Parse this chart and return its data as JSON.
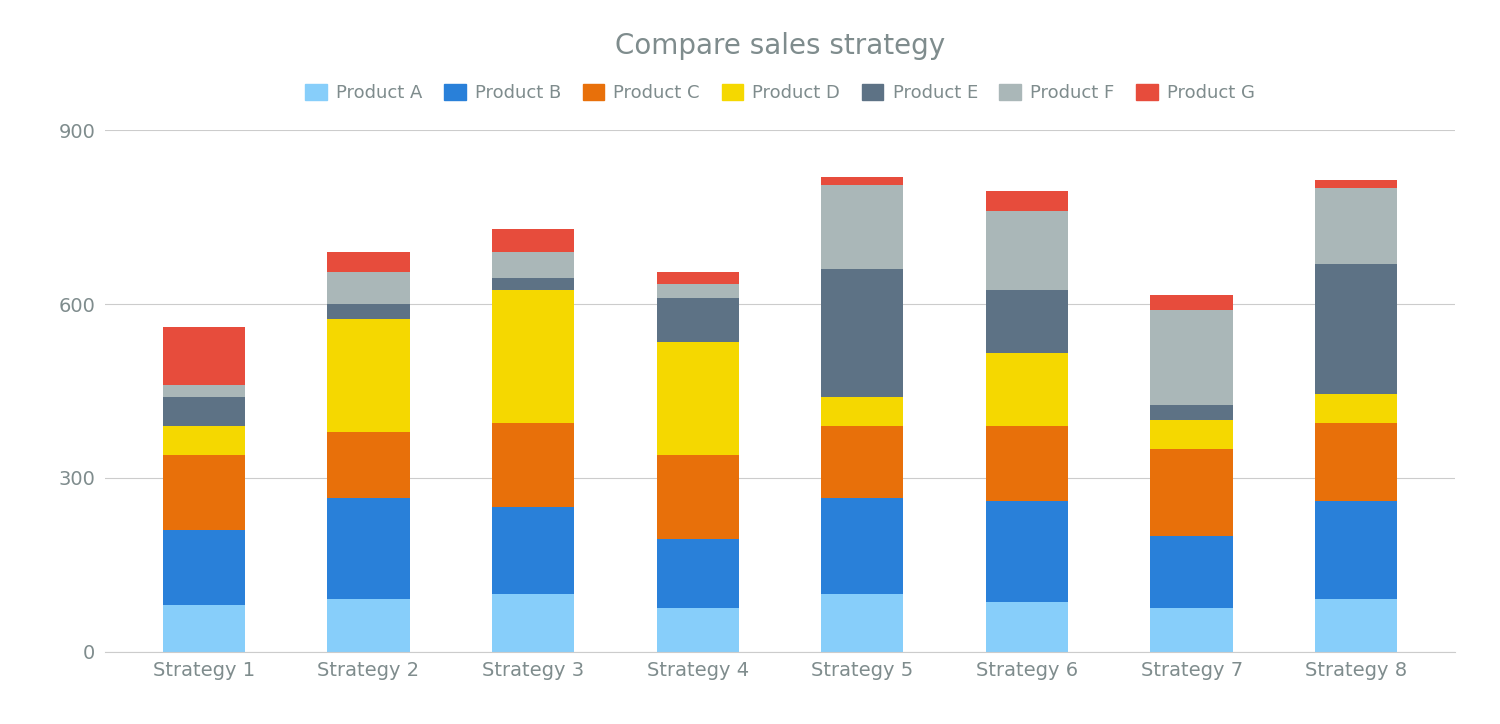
{
  "title": "Compare sales strategy",
  "categories": [
    "Strategy 1",
    "Strategy 2",
    "Strategy 3",
    "Strategy 4",
    "Strategy 5",
    "Strategy 6",
    "Strategy 7",
    "Strategy 8"
  ],
  "products": [
    "Product A",
    "Product B",
    "Product C",
    "Product D",
    "Product E",
    "Product F",
    "Product G"
  ],
  "colors": [
    "#87CEFA",
    "#2980D9",
    "#E8700A",
    "#F5D800",
    "#5D7285",
    "#AAB7B8",
    "#E74C3C"
  ],
  "values": [
    [
      80,
      130,
      130,
      50,
      50,
      20,
      100
    ],
    [
      90,
      175,
      115,
      195,
      25,
      55,
      35
    ],
    [
      100,
      150,
      145,
      230,
      20,
      45,
      40
    ],
    [
      75,
      120,
      145,
      195,
      75,
      25,
      20
    ],
    [
      100,
      165,
      125,
      50,
      220,
      145,
      15
    ],
    [
      85,
      175,
      130,
      125,
      110,
      135,
      35
    ],
    [
      75,
      125,
      150,
      50,
      25,
      165,
      25
    ],
    [
      90,
      170,
      135,
      50,
      225,
      130,
      15
    ]
  ],
  "ylim": [
    0,
    900
  ],
  "yticks": [
    0,
    300,
    600,
    900
  ],
  "background_color": "#ffffff",
  "title_color": "#7F8C8D",
  "title_fontsize": 20,
  "legend_fontsize": 13,
  "tick_fontsize": 14,
  "bar_width": 0.5
}
